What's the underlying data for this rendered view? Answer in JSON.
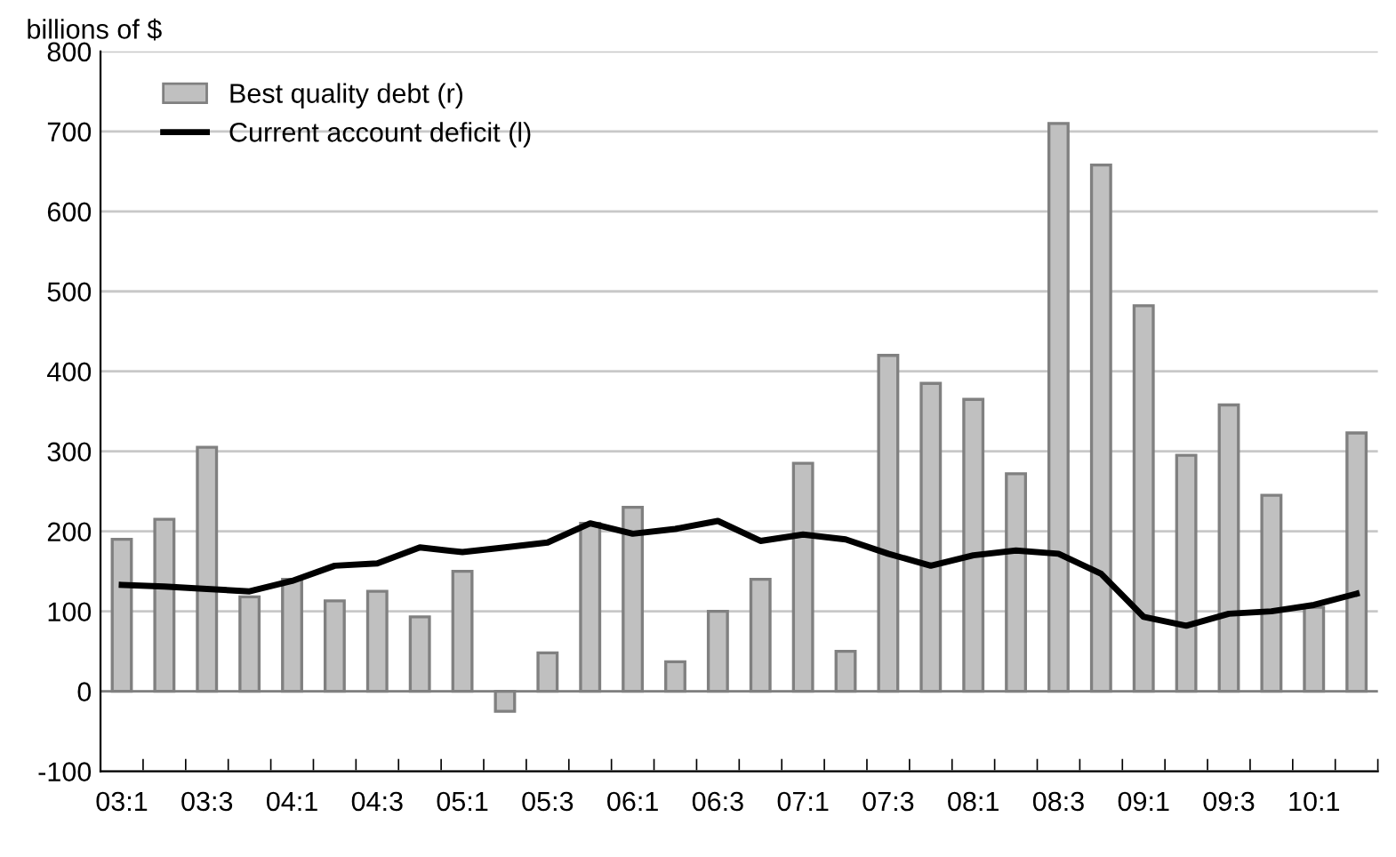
{
  "chart_data": {
    "type": "bar",
    "ylabel": "billions of $",
    "categories": [
      "03:1",
      null,
      "03:3",
      null,
      "04:1",
      null,
      "04:3",
      null,
      "05:1",
      null,
      "05:3",
      null,
      "06:1",
      null,
      "06:3",
      null,
      "07:1",
      null,
      "07:3",
      null,
      "08:1",
      null,
      "08:3",
      null,
      "09:1",
      null,
      "09:3",
      null,
      "10:1",
      null
    ],
    "series": [
      {
        "name": "Best quality debt (r)",
        "color": "#c0c0c0",
        "values": [
          190,
          215,
          305,
          118,
          140,
          113,
          125,
          93,
          150,
          -25,
          48,
          210,
          230,
          37,
          100,
          140,
          285,
          50,
          420,
          385,
          365,
          272,
          710,
          658,
          482,
          295,
          358,
          245,
          105,
          323
        ]
      },
      {
        "name": "Current account deficit (l)",
        "type": "line",
        "color": "#000000",
        "values": [
          133,
          131,
          128,
          125,
          138,
          157,
          160,
          180,
          174,
          180,
          186,
          210,
          197,
          203,
          213,
          188,
          196,
          190,
          172,
          157,
          170,
          176,
          172,
          147,
          93,
          82,
          97,
          100,
          108,
          122
        ]
      }
    ],
    "ylim": [
      -100,
      800
    ],
    "yticks": [
      -100,
      0,
      100,
      200,
      300,
      400,
      500,
      600,
      700,
      800
    ],
    "grid": "y",
    "legend": "top left",
    "marker": "none",
    "line_style": "solid"
  }
}
